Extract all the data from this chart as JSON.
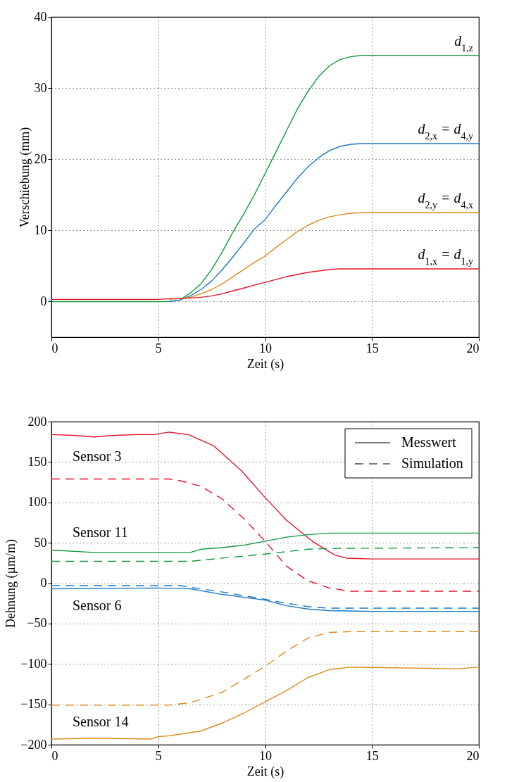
{
  "chart_data": [
    {
      "type": "line",
      "xlabel": "Zeit (s)",
      "ylabel": "Verschiebung (mm)",
      "xlim": [
        0,
        20
      ],
      "ylim": [
        -5,
        40
      ],
      "xticks": [
        0,
        5,
        10,
        15,
        20
      ],
      "yticks": [
        0,
        10,
        20,
        30,
        40
      ],
      "grid": true,
      "line_style": "solid",
      "x": [
        0,
        5,
        5.5,
        6,
        6.5,
        7,
        7.5,
        8,
        8.5,
        9,
        9.5,
        10,
        10.5,
        11,
        11.5,
        12,
        12.5,
        13,
        13.5,
        14,
        14.5,
        15,
        20
      ],
      "series": [
        {
          "name": "d$_{1,z}$",
          "color": "#11993c",
          "values": [
            0,
            0,
            0,
            0.2,
            1.2,
            2.5,
            4.5,
            7,
            9.8,
            12.3,
            15,
            18,
            21,
            24,
            27,
            29.5,
            31.6,
            33.1,
            34,
            34.4,
            34.6,
            34.6,
            34.6
          ]
        },
        {
          "name": "d$_{2,x}$ = d$_{4,y}$",
          "color": "#1f78c4",
          "values": [
            null,
            null,
            0,
            0.2,
            0.8,
            1.7,
            2.9,
            4.5,
            6.3,
            8.2,
            10.2,
            11.5,
            13.5,
            15.4,
            17.3,
            18.9,
            20.2,
            21.2,
            21.8,
            22.1,
            22.2,
            22.2,
            22.2
          ]
        },
        {
          "name": "d$_{2,y}$ = d$_{4,x}$",
          "color": "#dd8a1c",
          "values": [
            null,
            null,
            0.3,
            0.4,
            0.6,
            1.1,
            1.7,
            2.5,
            3.5,
            4.5,
            5.5,
            6.4,
            7.6,
            8.7,
            9.8,
            10.7,
            11.4,
            11.9,
            12.2,
            12.4,
            12.5,
            12.5,
            12.5
          ]
        },
        {
          "name": "d$_{1,x}$ = d$_{1,y}$",
          "color": "#e8132b",
          "values": [
            0.3,
            0.3,
            0.4,
            0.4,
            0.5,
            0.6,
            0.8,
            1.1,
            1.5,
            1.9,
            2.3,
            2.7,
            3.1,
            3.5,
            3.8,
            4.1,
            4.3,
            4.5,
            4.6,
            4.6,
            4.6,
            4.6,
            4.6
          ]
        }
      ]
    },
    {
      "type": "line",
      "xlabel": "Zeit (s)",
      "ylabel": "Dehnung (µm/m)",
      "xlim": [
        0,
        20
      ],
      "ylim": [
        -200,
        200
      ],
      "xticks": [
        0,
        5,
        10,
        15,
        20
      ],
      "yticks": [
        -200,
        -150,
        -100,
        -50,
        0,
        50,
        100,
        150,
        200
      ],
      "grid": true,
      "annotations": [
        "Messwert",
        "Simulation"
      ],
      "series": [
        {
          "name": "Sensor 3",
          "color": "#e8132b",
          "line_style": "solid",
          "x": [
            0,
            1,
            2,
            3,
            4,
            4.8,
            5.5,
            6.4,
            7.6,
            8.9,
            10,
            11,
            12.2,
            13.25,
            13.8,
            15,
            20
          ],
          "values": [
            184,
            183,
            181,
            183,
            184,
            184,
            187,
            184,
            170,
            139,
            106,
            78,
            52,
            35,
            31,
            30,
            30
          ]
        },
        {
          "color": "#e8132b",
          "line_style": "dashed",
          "x": [
            0,
            5.5,
            6,
            7,
            8,
            9,
            10,
            11,
            12,
            13,
            14,
            20
          ],
          "values": [
            129,
            129,
            127,
            120,
            104,
            80,
            52,
            21,
            3,
            -6,
            -10,
            -10
          ]
        },
        {
          "name": "Sensor 11",
          "color": "#11993c",
          "line_style": "solid",
          "x": [
            0,
            2,
            5,
            6.5,
            7,
            8,
            9,
            10,
            11,
            12,
            13,
            20
          ],
          "values": [
            41,
            38,
            38,
            38,
            42,
            44,
            47,
            52,
            57,
            60,
            62,
            62
          ]
        },
        {
          "color": "#11993c",
          "line_style": "dashed",
          "x": [
            0,
            6.5,
            8,
            10,
            12,
            13,
            20
          ],
          "values": [
            27,
            27,
            31,
            36,
            42,
            43,
            44
          ]
        },
        {
          "name": "Sensor 6",
          "color": "#1f78c4",
          "line_style": "solid",
          "x": [
            0,
            5,
            6.5,
            8,
            10,
            11,
            12,
            13,
            15,
            20
          ],
          "values": [
            -7,
            -6,
            -7,
            -14,
            -21,
            -28,
            -32,
            -34,
            -35,
            -35
          ]
        },
        {
          "color": "#1f78c4",
          "line_style": "dashed",
          "x": [
            0,
            6,
            8,
            10,
            11,
            12,
            13,
            20
          ],
          "values": [
            -3,
            -3,
            -11,
            -20,
            -25,
            -29,
            -31,
            -31
          ]
        },
        {
          "name": "Sensor 14",
          "color": "#dd8a1c",
          "line_style": "solid",
          "x": [
            0,
            2,
            4.7,
            5,
            5.5,
            7,
            8,
            9,
            10,
            11,
            12,
            13,
            14,
            19,
            20
          ],
          "values": [
            -193,
            -192,
            -193,
            -190,
            -189,
            -183,
            -173,
            -161,
            -147,
            -133,
            -117,
            -107,
            -104,
            -106,
            -104
          ]
        },
        {
          "color": "#dd8a1c",
          "line_style": "dashed",
          "x": [
            0,
            5.5,
            6.5,
            8,
            9,
            10,
            11,
            12,
            13,
            14,
            20
          ],
          "values": [
            -151,
            -151,
            -148,
            -135,
            -119,
            -103,
            -84,
            -68,
            -61,
            -60,
            -60
          ]
        }
      ]
    }
  ]
}
